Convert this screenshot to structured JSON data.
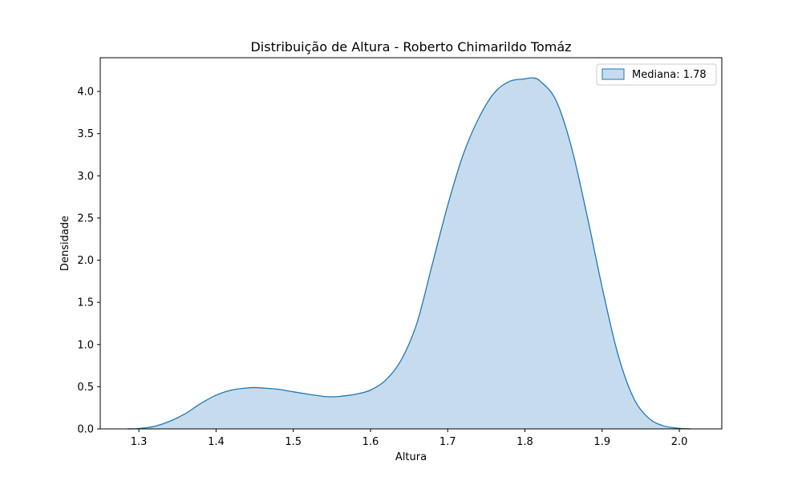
{
  "chart_data": {
    "type": "area",
    "title": "Distribuição de Altura - Roberto Chimarildo Tomáz",
    "xlabel": "Altura",
    "ylabel": "Densidade",
    "xlim": [
      1.25,
      2.055
    ],
    "ylim": [
      0,
      4.4
    ],
    "grid": false,
    "legend_position": "top-right",
    "x_ticks": [
      1.3,
      1.4,
      1.5,
      1.6,
      1.7,
      1.8,
      1.9,
      2.0
    ],
    "x_tick_labels": [
      "1.3",
      "1.4",
      "1.5",
      "1.6",
      "1.7",
      "1.8",
      "1.9",
      "2.0"
    ],
    "y_ticks": [
      0.0,
      0.5,
      1.0,
      1.5,
      2.0,
      2.5,
      3.0,
      3.5,
      4.0
    ],
    "y_tick_labels": [
      "0.0",
      "0.5",
      "1.0",
      "1.5",
      "2.0",
      "2.5",
      "3.0",
      "3.5",
      "4.0"
    ],
    "series": [
      {
        "name": "Mediana: 1.78",
        "x": [
          1.285,
          1.3,
          1.32,
          1.34,
          1.36,
          1.38,
          1.4,
          1.42,
          1.44,
          1.45,
          1.46,
          1.48,
          1.5,
          1.52,
          1.54,
          1.55,
          1.56,
          1.58,
          1.6,
          1.62,
          1.64,
          1.66,
          1.68,
          1.7,
          1.72,
          1.74,
          1.76,
          1.78,
          1.8,
          1.81,
          1.82,
          1.84,
          1.86,
          1.88,
          1.9,
          1.92,
          1.94,
          1.96,
          1.98,
          2.0,
          2.015
        ],
        "y": [
          0.0,
          0.005,
          0.03,
          0.09,
          0.18,
          0.3,
          0.4,
          0.46,
          0.485,
          0.49,
          0.485,
          0.47,
          0.44,
          0.41,
          0.385,
          0.38,
          0.385,
          0.41,
          0.46,
          0.58,
          0.82,
          1.25,
          1.95,
          2.65,
          3.25,
          3.68,
          3.98,
          4.12,
          4.15,
          4.16,
          4.12,
          3.9,
          3.35,
          2.55,
          1.68,
          0.9,
          0.38,
          0.13,
          0.035,
          0.007,
          0.0
        ]
      }
    ],
    "colors": {
      "line": "#1f77b4",
      "fill": "#c6dcee"
    }
  }
}
